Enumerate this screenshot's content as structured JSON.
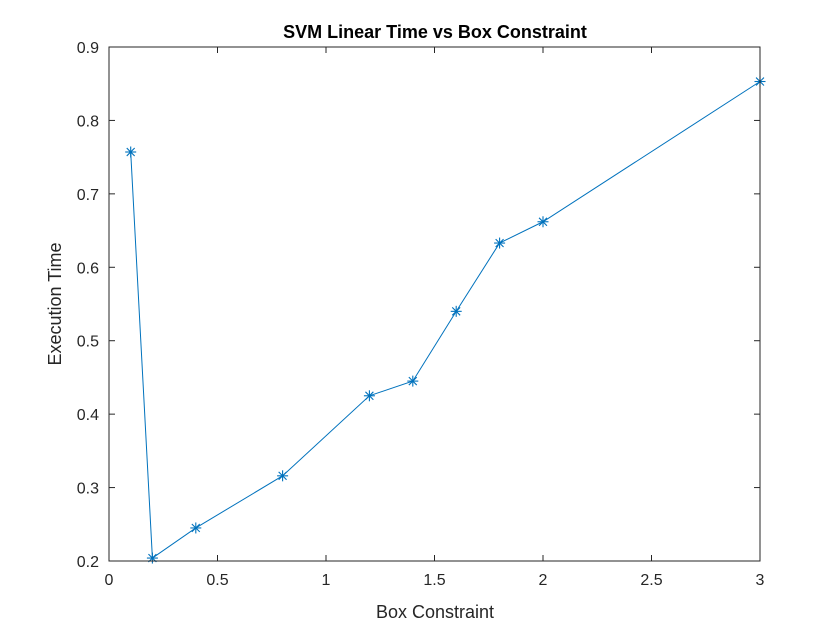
{
  "chart_data": {
    "type": "line",
    "title": "SVM Linear Time vs Box Constraint",
    "xlabel": "Box Constraint",
    "ylabel": "Execution Time",
    "xlim": [
      0,
      3
    ],
    "ylim": [
      0.2,
      0.9
    ],
    "x_ticks": [
      0,
      0.5,
      1,
      1.5,
      2,
      2.5,
      3
    ],
    "x_tick_labels": [
      "0",
      "0.5",
      "1",
      "1.5",
      "2",
      "2.5",
      "3"
    ],
    "y_ticks": [
      0.2,
      0.3,
      0.4,
      0.5,
      0.6,
      0.7,
      0.8,
      0.9
    ],
    "y_tick_labels": [
      "0.2",
      "0.3",
      "0.4",
      "0.5",
      "0.6",
      "0.7",
      "0.8",
      "0.9"
    ],
    "grid": false,
    "marker": "asterisk",
    "series": [
      {
        "color": "#0072BD",
        "x": [
          0.1,
          0.2,
          0.4,
          0.8,
          1.2,
          1.4,
          1.6,
          1.8,
          2.0,
          3.0
        ],
        "y": [
          0.757,
          0.204,
          0.245,
          0.316,
          0.425,
          0.445,
          0.54,
          0.633,
          0.662,
          0.853
        ]
      }
    ]
  }
}
